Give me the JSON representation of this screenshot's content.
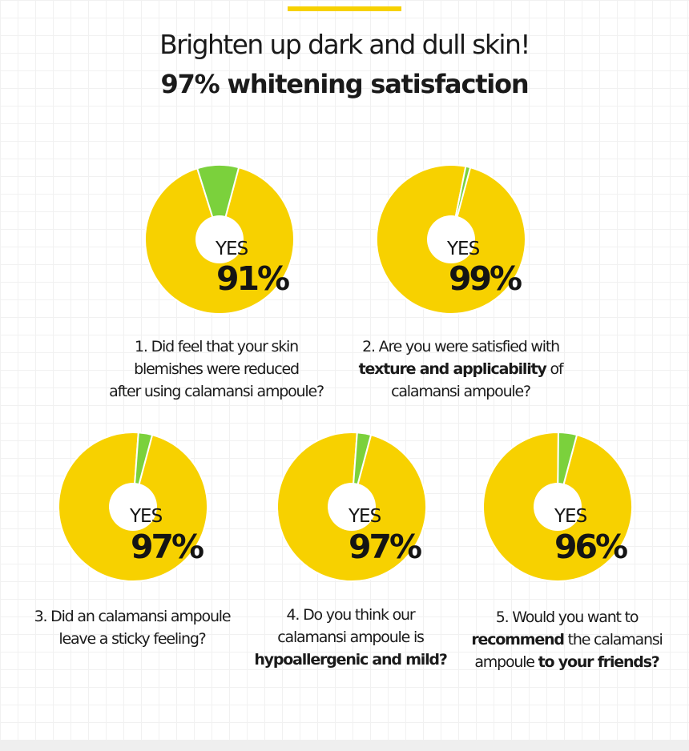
{
  "header": {
    "title": "Brighten up dark and dull skin!",
    "subtitle": "97% whitening satisfaction"
  },
  "colors": {
    "accent": "#f7d100",
    "yes": "#f7d100",
    "other": "#7bd13c",
    "text": "#141414"
  },
  "chart_data": {
    "type": "pie",
    "charts": [
      {
        "yes_label": "YES",
        "percent_label": "91%",
        "values": [
          91,
          9
        ],
        "question": [
          [
            {
              "t": "1. Did feel that your skin",
              "b": false
            }
          ],
          [
            {
              "t": "blemishes were reduced",
              "b": false
            }
          ],
          [
            {
              "t": "after using calamansi ampoule?",
              "b": false
            }
          ]
        ]
      },
      {
        "yes_label": "YES",
        "percent_label": "99%",
        "values": [
          99,
          1
        ],
        "question": [
          [
            {
              "t": "2. Are you were satisfied with",
              "b": false
            }
          ],
          [
            {
              "t": "texture and applicability",
              "b": true
            },
            {
              "t": " of",
              "b": false
            }
          ],
          [
            {
              "t": "calamansi ampoule?",
              "b": false
            }
          ]
        ]
      },
      {
        "yes_label": "YES",
        "percent_label": "97%",
        "values": [
          97,
          3
        ],
        "question": [
          [
            {
              "t": "3. Did an calamansi ampoule",
              "b": false
            }
          ],
          [
            {
              "t": "leave a sticky feeling?",
              "b": false
            }
          ]
        ]
      },
      {
        "yes_label": "YES",
        "percent_label": "97%",
        "values": [
          97,
          3
        ],
        "question": [
          [
            {
              "t": "4. Do you think our",
              "b": false
            }
          ],
          [
            {
              "t": "calamansi ampoule is",
              "b": false
            }
          ],
          [
            {
              "t": "hypoallergenic and mild?",
              "b": true
            }
          ]
        ]
      },
      {
        "yes_label": "YES",
        "percent_label": "96%",
        "values": [
          96,
          4
        ],
        "question": [
          [
            {
              "t": "5. Would you want to",
              "b": false
            }
          ],
          [
            {
              "t": "recommend",
              "b": true
            },
            {
              "t": " the calamansi",
              "b": false
            }
          ],
          [
            {
              "t": "ampoule ",
              "b": false
            },
            {
              "t": "to your friends?",
              "b": true
            }
          ]
        ]
      }
    ]
  }
}
